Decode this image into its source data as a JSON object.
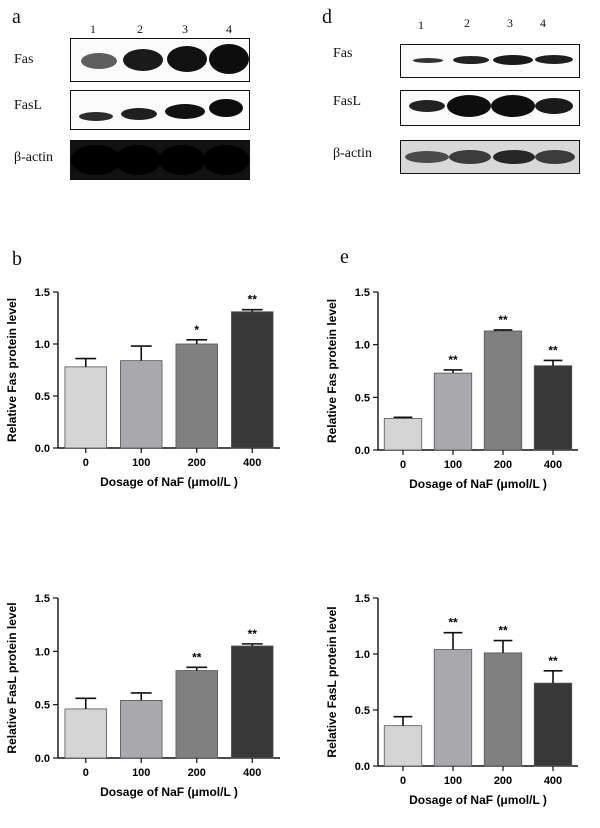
{
  "panels": {
    "a": "a",
    "b": "b",
    "d": "d",
    "e": "e"
  },
  "blots": [
    {
      "id": "a",
      "lanes": [
        "1",
        "2",
        "3",
        "4"
      ],
      "rows": [
        {
          "label": "Fas",
          "intensity": [
            0.55,
            0.8,
            0.95,
            1.0
          ]
        },
        {
          "label": "FasL",
          "intensity": [
            0.45,
            0.6,
            0.75,
            0.85
          ]
        },
        {
          "label": "β-actin",
          "intensity": [
            1.0,
            1.0,
            1.0,
            1.0
          ]
        }
      ]
    },
    {
      "id": "d",
      "lanes": [
        "1",
        "2",
        "3",
        "4"
      ],
      "rows": [
        {
          "label": "Fas",
          "intensity": [
            0.35,
            0.6,
            0.8,
            0.7
          ]
        },
        {
          "label": "FasL",
          "intensity": [
            0.55,
            0.95,
            0.95,
            0.7
          ]
        },
        {
          "label": "β-actin",
          "intensity": [
            0.6,
            0.65,
            0.7,
            0.65
          ]
        }
      ]
    }
  ],
  "chart_data": [
    {
      "id": "b-fas",
      "type": "bar",
      "categories": [
        "0",
        "100",
        "200",
        "400"
      ],
      "values": [
        0.78,
        0.84,
        1.0,
        1.31
      ],
      "errors": [
        0.08,
        0.14,
        0.04,
        0.02
      ],
      "significance": [
        "",
        "",
        "*",
        "**"
      ],
      "colors": [
        "#d4d4d4",
        "#a8a8ad",
        "#808080",
        "#383838"
      ],
      "ylabel": "Relative Fas protein level",
      "xlabel": "Dosage of NaF (μmol/L )",
      "ylim": [
        0,
        1.5
      ],
      "yticks": [
        "0.0",
        "0.5",
        "1.0",
        "1.5"
      ]
    },
    {
      "id": "e-fas",
      "type": "bar",
      "categories": [
        "0",
        "100",
        "200",
        "400"
      ],
      "values": [
        0.3,
        0.73,
        1.13,
        0.8
      ],
      "errors": [
        0.01,
        0.03,
        0.01,
        0.05
      ],
      "significance": [
        "",
        "**",
        "**",
        "**"
      ],
      "colors": [
        "#d4d4d4",
        "#a8a8ad",
        "#808080",
        "#383838"
      ],
      "ylabel": "Relative Fas protein level",
      "xlabel": "Dosage of NaF (μmol/L )",
      "ylim": [
        0,
        1.5
      ],
      "yticks": [
        "0.0",
        "0.5",
        "1.0",
        "1.5"
      ]
    },
    {
      "id": "b-fasl",
      "type": "bar",
      "categories": [
        "0",
        "100",
        "200",
        "400"
      ],
      "values": [
        0.46,
        0.54,
        0.82,
        1.05
      ],
      "errors": [
        0.1,
        0.07,
        0.03,
        0.02
      ],
      "significance": [
        "",
        "",
        "**",
        "**"
      ],
      "colors": [
        "#d4d4d4",
        "#a8a8ad",
        "#808080",
        "#383838"
      ],
      "ylabel": "Relative FasL protein level",
      "xlabel": "Dosage of NaF (μmol/L )",
      "ylim": [
        0,
        1.5
      ],
      "yticks": [
        "0.0",
        "0.5",
        "1.0",
        "1.5"
      ]
    },
    {
      "id": "e-fasl",
      "type": "bar",
      "categories": [
        "0",
        "100",
        "200",
        "400"
      ],
      "values": [
        0.36,
        1.04,
        1.01,
        0.74
      ],
      "errors": [
        0.08,
        0.15,
        0.11,
        0.11
      ],
      "significance": [
        "",
        "**",
        "**",
        "**"
      ],
      "colors": [
        "#d4d4d4",
        "#a8a8ad",
        "#808080",
        "#383838"
      ],
      "ylabel": "Relative FasL protein level",
      "xlabel": "Dosage of NaF (μmol/L )",
      "ylim": [
        0,
        1.5
      ],
      "yticks": [
        "0.0",
        "0.5",
        "1.0",
        "1.5"
      ]
    }
  ]
}
